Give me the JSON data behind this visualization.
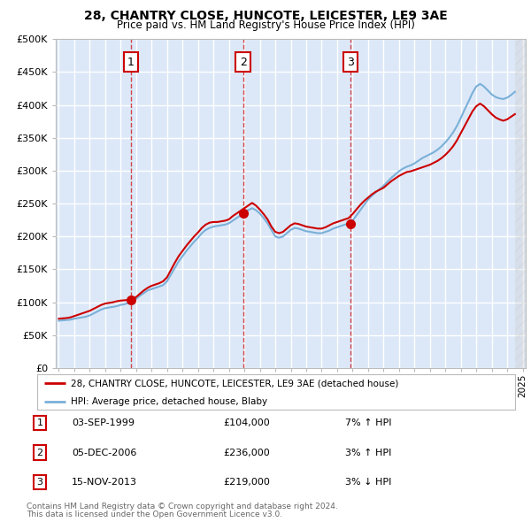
{
  "title": "28, CHANTRY CLOSE, HUNCOTE, LEICESTER, LE9 3AE",
  "subtitle": "Price paid vs. HM Land Registry's House Price Index (HPI)",
  "ylabel_ticks": [
    "£0",
    "£50K",
    "£100K",
    "£150K",
    "£200K",
    "£250K",
    "£300K",
    "£350K",
    "£400K",
    "£450K",
    "£500K"
  ],
  "ylim": [
    0,
    500000
  ],
  "xlim_start": 1994.8,
  "xlim_end": 2025.2,
  "sale_dates": [
    1999.67,
    2006.92,
    2013.87
  ],
  "sale_prices": [
    104000,
    236000,
    219000
  ],
  "sale_labels": [
    "1",
    "2",
    "3"
  ],
  "sale_info": [
    {
      "num": "1",
      "date": "03-SEP-1999",
      "price": "£104,000",
      "pct": "7%",
      "dir": "↑"
    },
    {
      "num": "2",
      "date": "05-DEC-2006",
      "price": "£236,000",
      "pct": "3%",
      "dir": "↑"
    },
    {
      "num": "3",
      "date": "15-NOV-2013",
      "price": "£219,000",
      "pct": "3%",
      "dir": "↓"
    }
  ],
  "legend_label_red": "28, CHANTRY CLOSE, HUNCOTE, LEICESTER, LE9 3AE (detached house)",
  "legend_label_blue": "HPI: Average price, detached house, Blaby",
  "footer1": "Contains HM Land Registry data © Crown copyright and database right 2024.",
  "footer2": "This data is licensed under the Open Government Licence v3.0.",
  "bg_color": "#ffffff",
  "plot_bg": "#dce8f8",
  "grid_color": "#ffffff",
  "red_color": "#cc0000",
  "blue_color": "#7ab0d8",
  "hpi_data": {
    "years": [
      1995.0,
      1995.25,
      1995.5,
      1995.75,
      1996.0,
      1996.25,
      1996.5,
      1996.75,
      1997.0,
      1997.25,
      1997.5,
      1997.75,
      1998.0,
      1998.25,
      1998.5,
      1998.75,
      1999.0,
      1999.25,
      1999.5,
      1999.75,
      2000.0,
      2000.25,
      2000.5,
      2000.75,
      2001.0,
      2001.25,
      2001.5,
      2001.75,
      2002.0,
      2002.25,
      2002.5,
      2002.75,
      2003.0,
      2003.25,
      2003.5,
      2003.75,
      2004.0,
      2004.25,
      2004.5,
      2004.75,
      2005.0,
      2005.25,
      2005.5,
      2005.75,
      2006.0,
      2006.25,
      2006.5,
      2006.75,
      2007.0,
      2007.25,
      2007.5,
      2007.75,
      2008.0,
      2008.25,
      2008.5,
      2008.75,
      2009.0,
      2009.25,
      2009.5,
      2009.75,
      2010.0,
      2010.25,
      2010.5,
      2010.75,
      2011.0,
      2011.25,
      2011.5,
      2011.75,
      2012.0,
      2012.25,
      2012.5,
      2012.75,
      2013.0,
      2013.25,
      2013.5,
      2013.75,
      2014.0,
      2014.25,
      2014.5,
      2014.75,
      2015.0,
      2015.25,
      2015.5,
      2015.75,
      2016.0,
      2016.25,
      2016.5,
      2016.75,
      2017.0,
      2017.25,
      2017.5,
      2017.75,
      2018.0,
      2018.25,
      2018.5,
      2018.75,
      2019.0,
      2019.25,
      2019.5,
      2019.75,
      2020.0,
      2020.25,
      2020.5,
      2020.75,
      2021.0,
      2021.25,
      2021.5,
      2021.75,
      2022.0,
      2022.25,
      2022.5,
      2022.75,
      2023.0,
      2023.25,
      2023.5,
      2023.75,
      2024.0,
      2024.25,
      2024.5
    ],
    "values": [
      72000,
      72500,
      73000,
      73500,
      75000,
      76000,
      77000,
      78000,
      80000,
      83000,
      86000,
      89000,
      91000,
      92000,
      93000,
      94000,
      96000,
      97000,
      99000,
      101000,
      105000,
      110000,
      114000,
      118000,
      120000,
      122000,
      124000,
      126000,
      132000,
      142000,
      152000,
      162000,
      170000,
      178000,
      185000,
      192000,
      198000,
      205000,
      210000,
      213000,
      215000,
      216000,
      217000,
      218000,
      220000,
      224000,
      228000,
      232000,
      236000,
      240000,
      243000,
      240000,
      235000,
      228000,
      220000,
      210000,
      200000,
      198000,
      200000,
      205000,
      210000,
      213000,
      212000,
      210000,
      208000,
      207000,
      206000,
      205000,
      205000,
      207000,
      209000,
      212000,
      214000,
      216000,
      218000,
      220000,
      224000,
      232000,
      240000,
      248000,
      256000,
      262000,
      267000,
      272000,
      277000,
      283000,
      289000,
      294000,
      299000,
      303000,
      306000,
      308000,
      311000,
      315000,
      319000,
      322000,
      325000,
      328000,
      332000,
      337000,
      343000,
      350000,
      358000,
      368000,
      380000,
      393000,
      405000,
      418000,
      428000,
      432000,
      428000,
      422000,
      416000,
      412000,
      410000,
      409000,
      411000,
      415000,
      420000
    ]
  },
  "price_paid_data": {
    "years": [
      1995.0,
      1995.25,
      1995.5,
      1995.75,
      1996.0,
      1996.25,
      1996.5,
      1996.75,
      1997.0,
      1997.25,
      1997.5,
      1997.75,
      1998.0,
      1998.25,
      1998.5,
      1998.75,
      1999.0,
      1999.25,
      1999.5,
      1999.75,
      2000.0,
      2000.25,
      2000.5,
      2000.75,
      2001.0,
      2001.25,
      2001.5,
      2001.75,
      2002.0,
      2002.25,
      2002.5,
      2002.75,
      2003.0,
      2003.25,
      2003.5,
      2003.75,
      2004.0,
      2004.25,
      2004.5,
      2004.75,
      2005.0,
      2005.25,
      2005.5,
      2005.75,
      2006.0,
      2006.25,
      2006.5,
      2006.75,
      2007.0,
      2007.25,
      2007.5,
      2007.75,
      2008.0,
      2008.25,
      2008.5,
      2008.75,
      2009.0,
      2009.25,
      2009.5,
      2009.75,
      2010.0,
      2010.25,
      2010.5,
      2010.75,
      2011.0,
      2011.25,
      2011.5,
      2011.75,
      2012.0,
      2012.25,
      2012.5,
      2012.75,
      2013.0,
      2013.25,
      2013.5,
      2013.75,
      2014.0,
      2014.25,
      2014.5,
      2014.75,
      2015.0,
      2015.25,
      2015.5,
      2015.75,
      2016.0,
      2016.25,
      2016.5,
      2016.75,
      2017.0,
      2017.25,
      2017.5,
      2017.75,
      2018.0,
      2018.25,
      2018.5,
      2018.75,
      2019.0,
      2019.25,
      2019.5,
      2019.75,
      2020.0,
      2020.25,
      2020.5,
      2020.75,
      2021.0,
      2021.25,
      2021.5,
      2021.75,
      2022.0,
      2022.25,
      2022.5,
      2022.75,
      2023.0,
      2023.25,
      2023.5,
      2023.75,
      2024.0,
      2024.25,
      2024.5
    ],
    "values": [
      75000,
      75500,
      76000,
      77000,
      79000,
      81000,
      83000,
      85000,
      87000,
      90000,
      93000,
      96000,
      98000,
      99000,
      100000,
      101500,
      102500,
      103000,
      103500,
      104500,
      108000,
      113000,
      118000,
      122000,
      125000,
      127000,
      129000,
      132000,
      138000,
      149000,
      160000,
      170000,
      178000,
      186000,
      193000,
      200000,
      206000,
      213000,
      218000,
      221000,
      222000,
      222000,
      223000,
      224000,
      226000,
      231000,
      235000,
      239000,
      243000,
      247000,
      251000,
      247000,
      241000,
      234000,
      226000,
      215000,
      207000,
      205000,
      207000,
      212000,
      217000,
      220000,
      219000,
      217000,
      215000,
      214000,
      213000,
      212000,
      212000,
      214000,
      217000,
      220000,
      222000,
      224000,
      226000,
      228000,
      234000,
      241000,
      248000,
      254000,
      259000,
      264000,
      268000,
      271000,
      274000,
      279000,
      284000,
      288000,
      292000,
      295000,
      298000,
      299000,
      301000,
      303000,
      305000,
      307000,
      309000,
      312000,
      315000,
      319000,
      324000,
      330000,
      337000,
      346000,
      357000,
      368000,
      379000,
      390000,
      398000,
      402000,
      398000,
      392000,
      386000,
      381000,
      378000,
      376000,
      378000,
      382000,
      386000
    ]
  }
}
